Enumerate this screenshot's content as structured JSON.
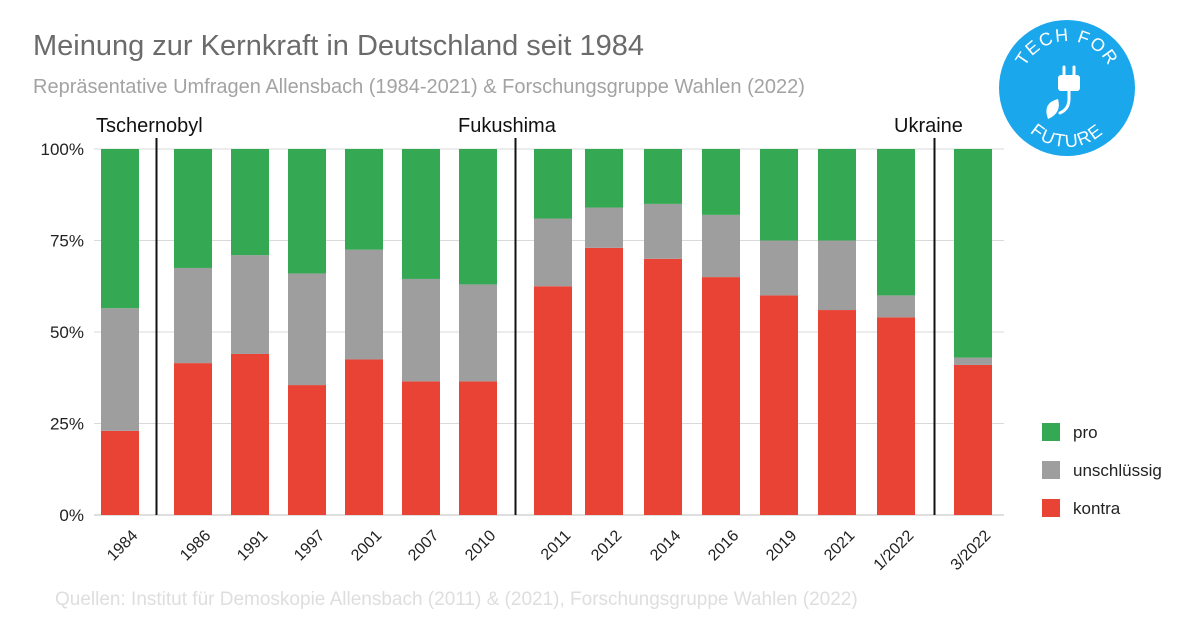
{
  "title": "Meinung zur Kernkraft in Deutschland seit 1984",
  "subtitle": "Repräsentative Umfragen Allensbach (1984-2021) & Forschungsgruppe Wahlen (2022)",
  "source": "Quellen: Institut für Demoskopie Allensbach (2011) & (2021), Forschungsgruppe Wahlen (2022)",
  "logo": {
    "line1": "TECH FOR",
    "line2": "FUTURE",
    "icon": "plug-leaf-icon",
    "color": "#1aa7ec"
  },
  "chart_data": {
    "type": "bar",
    "stacked": true,
    "normalized": true,
    "categories": [
      "1984",
      "1986",
      "1991",
      "1997",
      "2001",
      "2007",
      "2010",
      "2011",
      "2012",
      "2014",
      "2016",
      "2019",
      "2021",
      "1/2022",
      "3/2022"
    ],
    "series": [
      {
        "name": "kontra",
        "color": "#e94335",
        "values": [
          23,
          41.5,
          44,
          35.5,
          42.5,
          36.5,
          36.5,
          62.5,
          73,
          70,
          65,
          60,
          56,
          54,
          41
        ]
      },
      {
        "name": "unschlüssig",
        "color": "#9e9e9e",
        "values": [
          33.5,
          26,
          27,
          30.5,
          30,
          28,
          26.5,
          18.5,
          11,
          15,
          17,
          15,
          19,
          6,
          2
        ]
      },
      {
        "name": "pro",
        "color": "#34a853",
        "values": [
          43.5,
          32.5,
          29,
          34,
          27.5,
          35.5,
          37,
          19,
          16,
          15,
          18,
          25,
          25,
          40,
          57
        ]
      }
    ],
    "yticks": [
      "0%",
      "25%",
      "50%",
      "75%",
      "100%"
    ],
    "ylim": [
      0,
      100
    ],
    "grid": true,
    "legend_position": "right",
    "events": [
      {
        "label": "Tschernobyl",
        "after_category": "1984"
      },
      {
        "label": "Fukushima",
        "after_category": "2010"
      },
      {
        "label": "Ukraine",
        "after_category": "1/2022"
      }
    ]
  }
}
